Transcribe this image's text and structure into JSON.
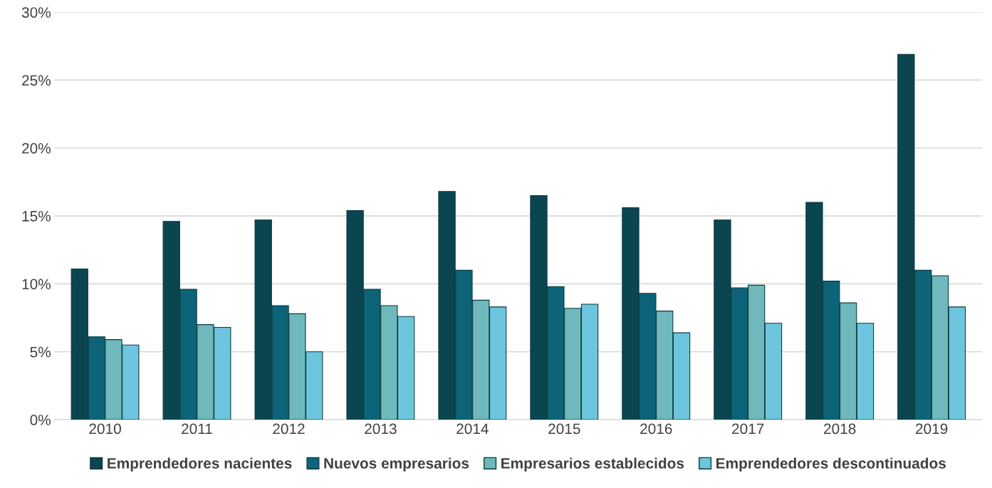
{
  "chart_data": {
    "type": "bar",
    "categories": [
      "2010",
      "2011",
      "2012",
      "2013",
      "2014",
      "2015",
      "2016",
      "2017",
      "2018",
      "2019"
    ],
    "series": [
      {
        "name": "Emprendedores nacientes",
        "color": "#0b4650",
        "values": [
          11.1,
          14.6,
          14.7,
          15.4,
          16.8,
          16.5,
          15.6,
          14.7,
          16.0,
          26.9
        ]
      },
      {
        "name": "Nuevos empresarios",
        "color": "#0d6478",
        "values": [
          6.1,
          9.6,
          8.4,
          9.6,
          11.0,
          9.8,
          9.3,
          9.7,
          10.2,
          11.0
        ]
      },
      {
        "name": "Empresarios establecidos",
        "color": "#6fb8bb",
        "values": [
          5.9,
          7.0,
          7.8,
          8.4,
          8.8,
          8.2,
          8.0,
          9.9,
          8.6,
          10.6
        ]
      },
      {
        "name": "Emprendedores descontinuados",
        "color": "#6ec6de",
        "values": [
          5.5,
          6.8,
          5.0,
          7.6,
          8.3,
          8.5,
          6.4,
          7.1,
          7.1,
          8.3
        ]
      }
    ],
    "ylim": [
      0,
      30
    ],
    "yticks": [
      {
        "value": 0,
        "label": "0%"
      },
      {
        "value": 5,
        "label": "5%"
      },
      {
        "value": 10,
        "label": "10%"
      },
      {
        "value": 15,
        "label": "15%"
      },
      {
        "value": 20,
        "label": "20%"
      },
      {
        "value": 25,
        "label": "25%"
      },
      {
        "value": 30,
        "label": "30%"
      }
    ],
    "grid": "y",
    "legend": "bottom"
  }
}
